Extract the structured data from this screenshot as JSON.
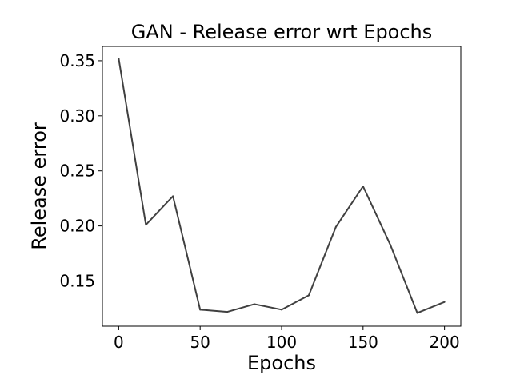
{
  "chart_data": {
    "type": "line",
    "title": "GAN - Release error wrt Epochs",
    "xlabel": "Epochs",
    "ylabel": "Release error",
    "xlim": [
      -10,
      210
    ],
    "ylim": [
      0.109,
      0.363
    ],
    "x_ticks": [
      0,
      50,
      100,
      150,
      200
    ],
    "x_tick_labels": [
      "0",
      "50",
      "100",
      "150",
      "200"
    ],
    "y_ticks": [
      0.15,
      0.2,
      0.25,
      0.3,
      0.35
    ],
    "y_tick_labels": [
      "0.15",
      "0.20",
      "0.25",
      "0.30",
      "0.35"
    ],
    "grid": false,
    "legend": "none",
    "series": [
      {
        "color": "#404040",
        "x": [
          0,
          16.7,
          33.3,
          50,
          66.7,
          83.3,
          100,
          116.7,
          133.3,
          150,
          166.7,
          183.3,
          200
        ],
        "y": [
          0.352,
          0.201,
          0.227,
          0.124,
          0.122,
          0.129,
          0.124,
          0.137,
          0.199,
          0.236,
          0.183,
          0.121,
          0.131
        ]
      }
    ]
  }
}
